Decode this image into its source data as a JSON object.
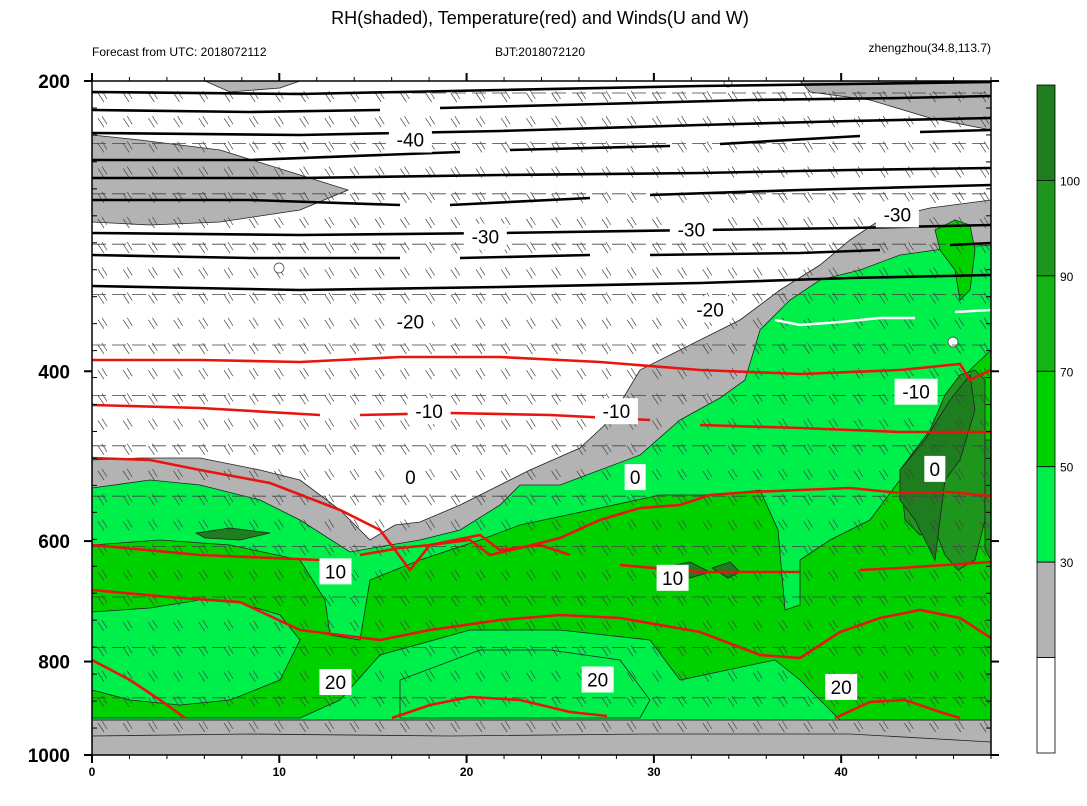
{
  "chart_data": {
    "type": "contour",
    "title": "RH(shaded), Temperature(red) and Winds(U and W)",
    "subtitle_left": "Forecast from UTC: 2018072112",
    "subtitle_center": "BJT:2018072120",
    "subtitle_right": "zhengzhou(34.8,113.7)",
    "x_range": [
      0,
      48
    ],
    "y_range": [
      200,
      1000
    ],
    "y_scale": "log-pressure (reversed)",
    "x_ticks": [
      "0",
      "10",
      "20",
      "30",
      "40"
    ],
    "y_ticks": [
      "200",
      "400",
      "600",
      "800",
      "1000"
    ],
    "colorbar_ticks": [
      "30",
      "50",
      "70",
      "90",
      "100"
    ],
    "colorbar_colors": [
      "#ffffff",
      "#b3b3b3",
      "#00f04b",
      "#00d200",
      "#14b414",
      "#1e961e",
      "#1e7d1e"
    ],
    "temperature_labels": [
      {
        "text": "-40",
        "x": 17,
        "y": 230
      },
      {
        "text": "-30",
        "x": 21,
        "y": 290
      },
      {
        "text": "-30",
        "x": 32,
        "y": 285
      },
      {
        "text": "-30",
        "x": 43,
        "y": 275
      },
      {
        "text": "-20",
        "x": 17,
        "y": 355
      },
      {
        "text": "-20",
        "x": 33,
        "y": 345
      },
      {
        "text": "-10",
        "x": 18,
        "y": 440
      },
      {
        "text": "-10",
        "x": 28,
        "y": 440
      },
      {
        "text": "-10",
        "x": 44,
        "y": 420
      },
      {
        "text": "0",
        "x": 17,
        "y": 515
      },
      {
        "text": "0",
        "x": 29,
        "y": 515
      },
      {
        "text": "0",
        "x": 45,
        "y": 505
      },
      {
        "text": "10",
        "x": 13,
        "y": 645
      },
      {
        "text": "10",
        "x": 31,
        "y": 655
      },
      {
        "text": "20",
        "x": 13,
        "y": 840
      },
      {
        "text": "20",
        "x": 27,
        "y": 835
      },
      {
        "text": "20",
        "x": 40,
        "y": 850
      }
    ]
  }
}
